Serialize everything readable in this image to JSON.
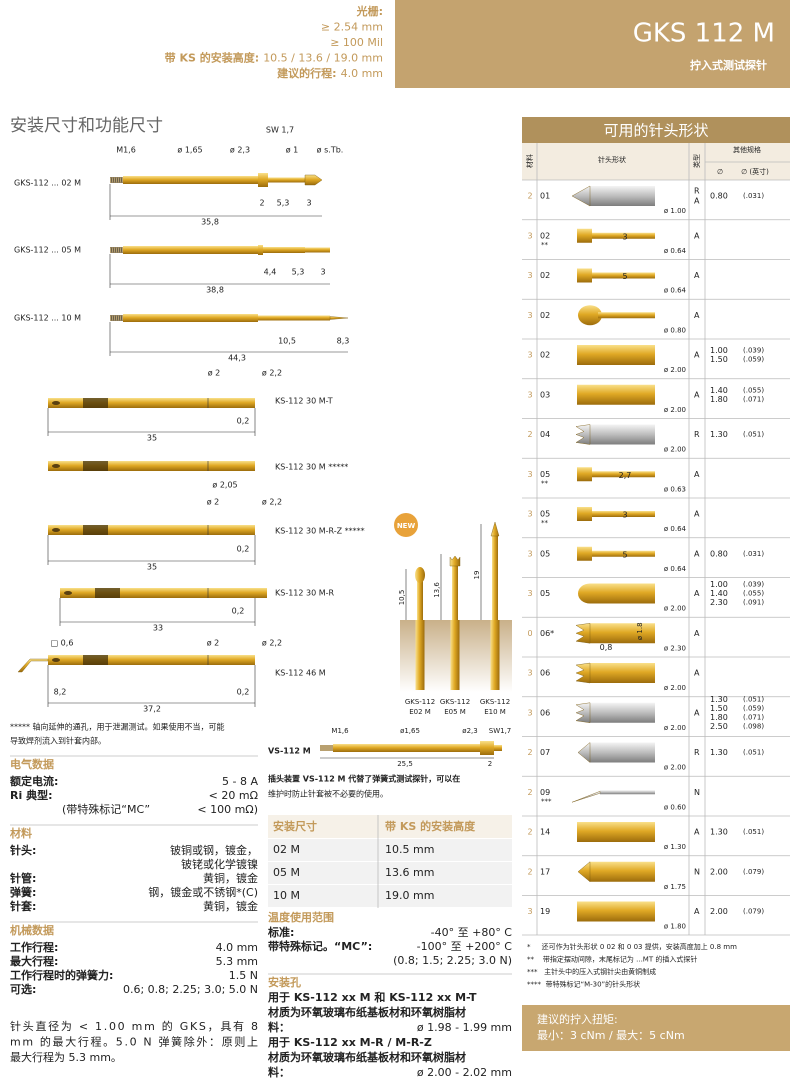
{
  "header": {
    "lines": [
      {
        "label": "光栅:"
      },
      {
        "text": "≥ 2.54 mm"
      },
      {
        "text": "≥ 100 Mil"
      },
      {
        "label": "带 KS 的安装高度:",
        "text": "10.5 / 13.6 / 19.0 mm"
      },
      {
        "label": "建议的行程:",
        "text": "4.0 mm"
      }
    ],
    "title": "GKS 112 M",
    "subtitle": "拧入式测试探针"
  },
  "drawings": {
    "title": "安装尺寸和功能尺寸",
    "probes": [
      {
        "label": "GKS-112 ... 02 M",
        "dims": [
          "M1,6",
          "ø 1,65",
          "ø 2,3",
          "SW 1,7",
          "ø 1",
          "ø s.Tb.",
          "2",
          "5,3",
          "3",
          "35,8"
        ]
      },
      {
        "label": "GKS-112 ... 05 M",
        "dims": [
          "4,4",
          "5,3",
          "3",
          "38,8"
        ]
      },
      {
        "label": "GKS-112 ... 10 M",
        "dims": [
          "10,5",
          "8,3",
          "44,3"
        ]
      }
    ],
    "receptacles": [
      {
        "label": "KS-112 30 M-T",
        "dims": [
          "ø 2",
          "ø 2,2",
          "0,2",
          "35"
        ]
      },
      {
        "label": "KS-112 30 M *****",
        "dims": []
      },
      {
        "label": "KS-112 30 M-R-Z *****",
        "dims": [
          "ø 2,05",
          "ø 2",
          "ø 2,2",
          "0,2",
          "35"
        ],
        "badge": "NEW"
      },
      {
        "label": "KS-112 30 M-R",
        "dims": [
          "0,2",
          "33"
        ]
      },
      {
        "label": "KS-112 46 M",
        "dims": [
          "□ 0,6",
          "ø 2",
          "ø 2,2",
          "8,2",
          "0,2",
          "37,2"
        ]
      }
    ],
    "footnote": [
      "***** 轴向延伸的通孔，用于泄漏测试。如果使用不当，可能",
      "导致焊剂流入到针套内部。"
    ],
    "heights": {
      "dims": [
        "10,5",
        "13,6",
        "19"
      ],
      "captions": [
        [
          "GKS-112",
          "E02 M"
        ],
        [
          "GKS-112",
          "E05 M"
        ],
        [
          "GKS-112",
          "E10 M"
        ]
      ]
    },
    "plug": {
      "label": "VS-112 M",
      "dims": [
        "M1,6",
        "ø1,65",
        "ø2,3",
        "SW1,7",
        "25,5",
        "2"
      ],
      "caption": [
        "插头装置 VS-112 M 代替了弹簧式测试探针，可以在",
        "维护时防止针套被不必要的使用。"
      ]
    }
  },
  "specs": [
    {
      "title": "电气数据",
      "rows": [
        {
          "label": "额定电流:",
          "value": "5 - 8 A"
        },
        {
          "label": "Ri 典型:",
          "value": "< 20 mΩ"
        },
        {
          "note": "(带特殊标记“MC”",
          "value": "< 100 mΩ)"
        }
      ]
    },
    {
      "title": "材料",
      "rows": [
        {
          "label": "针头:",
          "value": [
            "铍铜或钢，镀金，",
            "铍铑或化学镀镍"
          ]
        },
        {
          "label": "针管:",
          "value": "黄铜，镀金"
        },
        {
          "label": "弹簧:",
          "value": "钢，镀金或不锈钢*(C)"
        },
        {
          "label": "针套:",
          "value": "黄铜，镀金"
        }
      ]
    },
    {
      "title": "机械数据",
      "rows": [
        {
          "label": "工作行程:",
          "value": "4.0 mm"
        },
        {
          "label": "最大行程:",
          "value": "5.3 mm"
        },
        {
          "label": "工作行程时的弹簧力:",
          "value": "1.5 N"
        },
        {
          "label": "可选:",
          "value": "0.6; 0.8; 2.25; 3.0; 5.0 N"
        }
      ]
    }
  ],
  "note": [
    "针头直径为 < 1.00 mm 的 GKS，具有 8",
    "mm 的最大行程。5.0 N 弹簧除外：原则上",
    "最大行程为 5.3 mm。"
  ],
  "install_table": {
    "header": [
      "安装尺寸",
      "带 KS 的安装高度"
    ],
    "rows": [
      [
        "02 M",
        "10.5 mm"
      ],
      [
        "05 M",
        "13.6 mm"
      ],
      [
        "10 M",
        "19.0 mm"
      ]
    ]
  },
  "temperature": {
    "title": "温度使用范围",
    "rows": [
      {
        "label": "标准:",
        "value": "-40° 至 +80° C"
      },
      {
        "label": "带特殊标记。“MC”:",
        "value": "-100° 至 +200° C"
      },
      {
        "value": "(0.8; 1.5; 2.25; 3.0 N)"
      }
    ]
  },
  "mounting": {
    "title": "安装孔",
    "items": [
      {
        "for": "用于 KS-112 xx M 和 KS-112 xx M-T",
        "material": [
          "材质为环氧玻璃布纸基板材和环氧树脂材",
          "料："
        ],
        "value": "ø 1.98 - 1.99 mm"
      },
      {
        "for": "用于 KS-112 xx M-R / M-R-Z",
        "material": [
          "材质为环氧玻璃布纸基板材和环氧树脂材",
          "料："
        ],
        "value": "ø 2.00 - 2.02 mm"
      }
    ]
  },
  "tips": {
    "title": "可用的针头形状",
    "headers": {
      "material": "材料",
      "shape": "针头形状",
      "type": "类型",
      "other": "其他规格",
      "diameter": "∅",
      "inch": "∅ (英寸)"
    },
    "rows": [
      {
        "material": "2",
        "code": "01",
        "diameter": "ø 1.00",
        "type": [
          "R",
          "A"
        ],
        "spec": [
          "0.80"
        ],
        "inch": [
          "(.031)"
        ]
      },
      {
        "material": "3",
        "code": "02",
        "note": "**",
        "dims": [
          "3"
        ],
        "diameter": "ø 0.64",
        "type": [
          "A"
        ]
      },
      {
        "material": "3",
        "code": "02",
        "dims": [
          "5"
        ],
        "diameter": "ø 0.64",
        "type": [
          "A"
        ]
      },
      {
        "material": "3",
        "code": "02",
        "diameter": "ø 0.80",
        "type": [
          "A"
        ]
      },
      {
        "material": "3",
        "code": "02",
        "diameter": "ø 2.00",
        "type": [
          "A"
        ],
        "spec": [
          "1.00",
          "1.50"
        ],
        "inch": [
          "(.039)",
          "(.059)"
        ]
      },
      {
        "material": "3",
        "code": "03",
        "diameter": "ø 2.00",
        "type": [
          "A"
        ],
        "spec": [
          "1.40",
          "1.80"
        ],
        "inch": [
          "(.055)",
          "(.071)"
        ]
      },
      {
        "material": "2",
        "code": "04",
        "diameter": "ø 2.00",
        "type": [
          "R"
        ],
        "spec": [
          "1.30"
        ],
        "inch": [
          "(.051)"
        ]
      },
      {
        "material": "3",
        "code": "05",
        "note": "**",
        "dims": [
          "2,7"
        ],
        "diameter": "ø 0.63",
        "type": [
          "A"
        ]
      },
      {
        "material": "3",
        "code": "05",
        "note": "**",
        "dims": [
          "3"
        ],
        "diameter": "ø 0.64",
        "type": [
          "A"
        ]
      },
      {
        "material": "3",
        "code": "05",
        "dims": [
          "5"
        ],
        "diameter": "ø 0.64",
        "type": [
          "A"
        ],
        "spec": [
          "0.80"
        ],
        "inch": [
          "(.031)"
        ]
      },
      {
        "material": "3",
        "code": "05",
        "diameter": "ø 2.00",
        "type": [
          "A"
        ],
        "spec": [
          "1.00",
          "1.40",
          "2.30"
        ],
        "inch": [
          "(.039)",
          "(.055)",
          "(.091)"
        ]
      },
      {
        "material": "0",
        "code": "06*",
        "dims": [
          "ø 1.8",
          "0,8"
        ],
        "diameter": "ø 2.30",
        "type": [
          "A"
        ]
      },
      {
        "material": "3",
        "code": "06",
        "diameter": "ø 2.00",
        "type": [
          "A"
        ]
      },
      {
        "material": "3",
        "code": "06",
        "diameter": "ø 2.00",
        "type": [
          "A"
        ],
        "spec": [
          "1.30",
          "1.50",
          "1.80",
          "2.50"
        ],
        "inch": [
          "(.051)",
          "(.059)",
          "(.071)",
          "(.098)"
        ]
      },
      {
        "material": "2",
        "code": "07",
        "diameter": "ø 2.00",
        "type": [
          "R"
        ],
        "spec": [
          "1.30"
        ],
        "inch": [
          "(.051)"
        ]
      },
      {
        "material": "2",
        "code": "09",
        "note": "***",
        "diameter": "ø 0.60",
        "type": [
          "N"
        ]
      },
      {
        "material": "2",
        "code": "14",
        "diameter": "ø 1.30",
        "type": [
          "A"
        ],
        "spec": [
          "1.30"
        ],
        "inch": [
          "(.051)"
        ]
      },
      {
        "material": "2",
        "code": "17",
        "diameter": "ø 1.75",
        "type": [
          "N"
        ],
        "spec": [
          "2.00"
        ],
        "inch": [
          "(.079)"
        ]
      },
      {
        "material": "3",
        "code": "19",
        "diameter": "ø 1.80",
        "type": [
          "A"
        ],
        "spec": [
          "2.00"
        ],
        "inch": [
          "(.079)"
        ]
      }
    ],
    "notes": [
      "*     还可作为针头形状 0 02 和 0 03 提供，安装高度加上 0.8 mm",
      "**    带指定摆动间隙，末尾标记为 ...MT 的插入式探针",
      "***   主针头中的压入式钢针尖由黄铜制成",
      "****  带特殊标记“M-30”的针头形状"
    ]
  },
  "torque": {
    "title": "建议的拧入扭矩:",
    "text": "最小：3 cNm / 最大：5 cNm"
  }
}
